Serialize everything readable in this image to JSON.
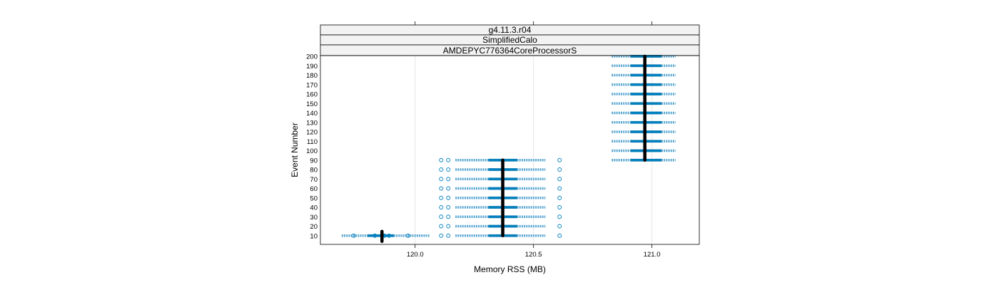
{
  "chart_data": {
    "type": "box-bwplot",
    "strips": [
      "g4.11.3.r04",
      "SimplifiedCalo",
      "AMDEPYC776364CoreProcessorS"
    ],
    "xlabel": "Memory RSS (MB)",
    "ylabel": "Event Number",
    "xlim": [
      119.6,
      121.2
    ],
    "ylim": [
      0,
      200
    ],
    "x_ticks": [
      120.0,
      120.5,
      121.0
    ],
    "x_tick_labels": [
      "120.0",
      "120.5",
      "121.0"
    ],
    "y_ticks": [
      10,
      20,
      30,
      40,
      50,
      60,
      70,
      80,
      90,
      100,
      110,
      120,
      130,
      140,
      150,
      160,
      170,
      180,
      190,
      200
    ],
    "y_tick_labels": [
      "10",
      "20",
      "30",
      "40",
      "50",
      "60",
      "70",
      "80",
      "90",
      "100",
      "110",
      "120",
      "130",
      "140",
      "150",
      "160",
      "170",
      "180",
      "190",
      "200"
    ],
    "grid": true,
    "colors": {
      "box": "#0080bf",
      "whisker": "#5aa7d1",
      "median": "#000000",
      "strip_bg": "#f2f2f2"
    },
    "groups": [
      {
        "events": [
          10
        ],
        "whisker_low": 119.69,
        "box_low": 119.8,
        "median": 119.86,
        "box_high": 119.91,
        "whisker_high": 120.06,
        "outliers": [
          119.74,
          119.83,
          119.87,
          119.89,
          119.97
        ]
      },
      {
        "events": [
          10,
          20,
          30,
          40,
          50,
          60,
          70,
          80,
          90
        ],
        "whisker_low": 120.17,
        "box_low": 120.31,
        "median": 120.37,
        "box_high": 120.43,
        "whisker_high": 120.55,
        "outliers": [
          120.11,
          120.14,
          120.61
        ]
      },
      {
        "events": [
          90,
          100,
          110,
          120,
          130,
          140,
          150,
          160,
          170,
          180,
          190,
          200
        ],
        "whisker_low": 120.83,
        "box_low": 120.91,
        "median": 120.97,
        "box_high": 121.04,
        "whisker_high": 121.1,
        "outliers": []
      }
    ]
  }
}
